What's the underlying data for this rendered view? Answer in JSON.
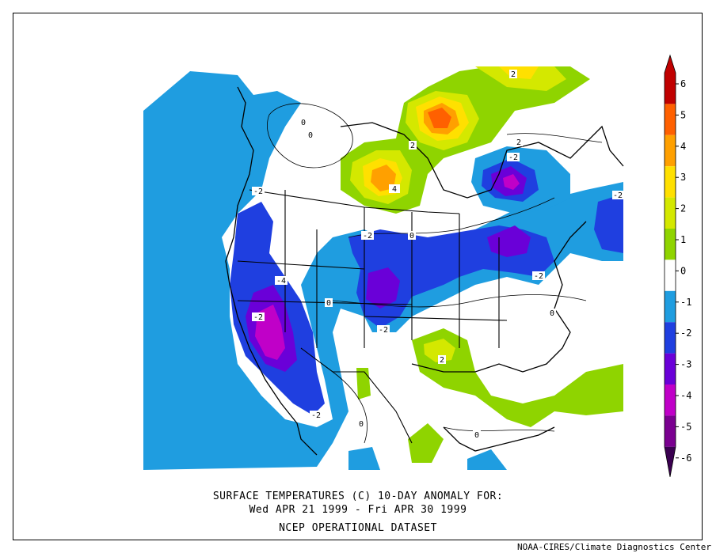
{
  "title": {
    "line1": "SURFACE TEMPERATURES (C)   10-DAY ANOMALY FOR:",
    "line2": "Wed APR 21 1999 - Fri APR 30 1999",
    "line3": "NCEP OPERATIONAL DATASET"
  },
  "credit": "NOAA-CIRES/Climate Diagnostics Center",
  "colorbar": {
    "levels": [
      {
        "label": "6",
        "color": "#c00000"
      },
      {
        "label": "5",
        "color": "#ff6000"
      },
      {
        "label": "4",
        "color": "#ffa000"
      },
      {
        "label": "3",
        "color": "#ffe000"
      },
      {
        "label": "2",
        "color": "#d4e800"
      },
      {
        "label": "1",
        "color": "#8fd400"
      },
      {
        "label": "0",
        "color": "#ffffff"
      },
      {
        "label": "-1",
        "color": "#ffffff"
      },
      {
        "label": "-2",
        "color": "#1f9de0"
      },
      {
        "label": "-3",
        "color": "#1f3fe0"
      },
      {
        "label": "-4",
        "color": "#6a00d8"
      },
      {
        "label": "-5",
        "color": "#c000c8"
      },
      {
        "label": "-6",
        "color": "#7a0090"
      }
    ],
    "top_color": "#c00000",
    "bottom_color": "#3a0050"
  },
  "contour_labels": [
    "0",
    "0",
    "0",
    "0",
    "0",
    "0",
    "0",
    "2",
    "2",
    "2",
    "2",
    "4",
    "-2",
    "-2",
    "-2",
    "-2",
    "-2",
    "-2",
    "-2",
    "-2",
    "-4"
  ]
}
